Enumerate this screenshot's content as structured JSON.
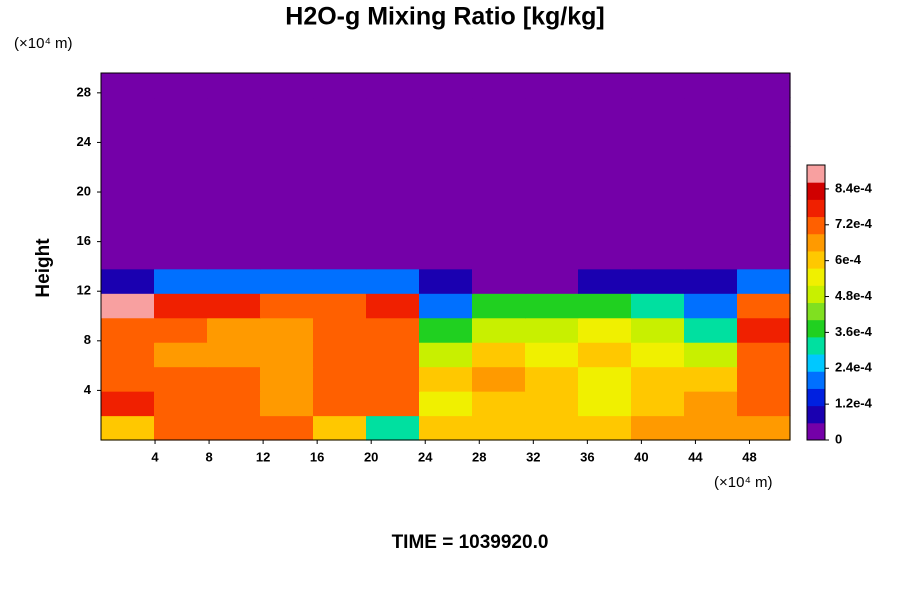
{
  "chart_data": {
    "type": "heatmap",
    "title": "H2O-g Mixing Ratio [kg/kg]",
    "y_unit_label": "(×10⁴ m)",
    "x_unit_label": "(×10⁴ m)",
    "ylabel": "Height",
    "annotation": "TIME = 1039920.0",
    "xlim": [
      0,
      51
    ],
    "ylim": [
      0,
      29.6
    ],
    "xticks": [
      4,
      8,
      12,
      16,
      20,
      24,
      28,
      32,
      36,
      40,
      44,
      48
    ],
    "yticks": [
      4,
      8,
      12,
      16,
      20,
      24,
      28
    ],
    "clim": [
      0,
      0.00092
    ],
    "cticks": [
      0,
      {
        "value": 0.00012,
        "label": "1.2e-4"
      },
      {
        "value": 0.00024,
        "label": "2.4e-4"
      },
      {
        "value": 0.00036,
        "label": "3.6e-4"
      },
      {
        "value": 0.00048,
        "label": "4.8e-4"
      },
      {
        "value": 0.0006,
        "label": "6e-4"
      },
      {
        "value": 0.00072,
        "label": "7.2e-4"
      },
      {
        "value": 0.00084,
        "label": "8.4e-4"
      }
    ],
    "colormap": [
      "#7400a8",
      "#1a00b0",
      "#0020e0",
      "#0070ff",
      "#00c8ff",
      "#00e0a0",
      "#20d020",
      "#80e020",
      "#c8f000",
      "#f0f000",
      "#ffc800",
      "#ff9a00",
      "#ff6000",
      "#f02000",
      "#d00000",
      "#f8a0a0"
    ],
    "z": [
      [
        0.0006,
        0.0007,
        0.0007,
        0.0007,
        0.0006,
        0.0003,
        0.0006,
        0.0006,
        0.0006,
        0.0006,
        0.00065,
        0.00065,
        0.00065
      ],
      [
        0.0008,
        0.0007,
        0.0007,
        0.00065,
        0.0007,
        0.0007,
        0.00055,
        0.0006,
        0.0006,
        0.00055,
        0.0006,
        0.00065,
        0.0007
      ],
      [
        0.0007,
        0.0007,
        0.0007,
        0.00065,
        0.0007,
        0.0007,
        0.0006,
        0.00065,
        0.0006,
        0.00055,
        0.0006,
        0.0006,
        0.0007
      ],
      [
        0.0007,
        0.00065,
        0.00065,
        0.00065,
        0.0007,
        0.0007,
        0.0005,
        0.0006,
        0.00055,
        0.0006,
        0.00055,
        0.0005,
        0.0007
      ],
      [
        0.0007,
        0.0007,
        0.00065,
        0.00065,
        0.0007,
        0.0007,
        0.0004,
        0.0005,
        0.0005,
        0.00055,
        0.0005,
        0.0003,
        0.0008
      ],
      [
        0.0009,
        0.0008,
        0.00075,
        0.0007,
        0.0007,
        0.0008,
        0.0002,
        0.00035,
        0.0004,
        0.0004,
        0.0003,
        0.0002,
        0.0007
      ],
      [
        0.0001,
        0.0002,
        0.0002,
        0.0002,
        0.0002,
        0.0002,
        0.0001,
        5e-05,
        3e-05,
        0.0001,
        0.0001,
        0.0001,
        0.0002
      ],
      [
        0,
        0,
        0,
        0,
        0,
        0,
        0,
        0,
        0,
        0,
        0,
        0,
        0
      ],
      [
        0,
        0,
        0,
        0,
        0,
        0,
        0,
        0,
        0,
        0,
        0,
        0,
        0
      ],
      [
        0,
        0,
        0,
        0,
        0,
        0,
        0,
        0,
        0,
        0,
        0,
        0,
        0
      ],
      [
        0,
        0,
        0,
        0,
        0,
        0,
        0,
        0,
        0,
        0,
        0,
        0,
        0
      ],
      [
        0,
        0,
        0,
        0,
        0,
        0,
        0,
        0,
        0,
        0,
        0,
        0,
        0
      ],
      [
        0,
        0,
        0,
        0,
        0,
        0,
        0,
        0,
        0,
        0,
        0,
        0,
        0
      ],
      [
        0,
        0,
        0,
        0,
        0,
        0,
        0,
        0,
        0,
        0,
        0,
        0,
        0
      ],
      [
        0,
        0,
        0,
        0,
        0,
        0,
        0,
        0,
        0,
        0,
        0,
        0,
        0
      ]
    ]
  }
}
